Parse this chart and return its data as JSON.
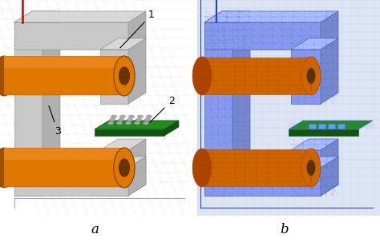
{
  "label_a": "a",
  "label_b": "b",
  "label_fontsize": 12,
  "bg_color": "#ffffff",
  "fig_width": 4.74,
  "fig_height": 3.03,
  "dpi": 100,
  "core_face": "#c8c8c8",
  "core_top": "#d8d8d8",
  "core_right": "#b0b0b0",
  "core_dark": "#a0a0a0",
  "coil_color": "#e07800",
  "coil_dark": "#a05000",
  "coil_inner": "#6b3300",
  "pcb_top": "#228B22",
  "pcb_side": "#145214",
  "pcb_pad": "#c0c0c0",
  "mesh_blue": "#4466cc",
  "mesh_bg": "#ccd5ee",
  "coil_mesh": "#bb4400",
  "grid_left": "#d0d0d0",
  "grid_right": "#b0bbdd",
  "red_wire": "#cc0000",
  "blue_wire": "#2244cc",
  "annot_color": "#000000"
}
